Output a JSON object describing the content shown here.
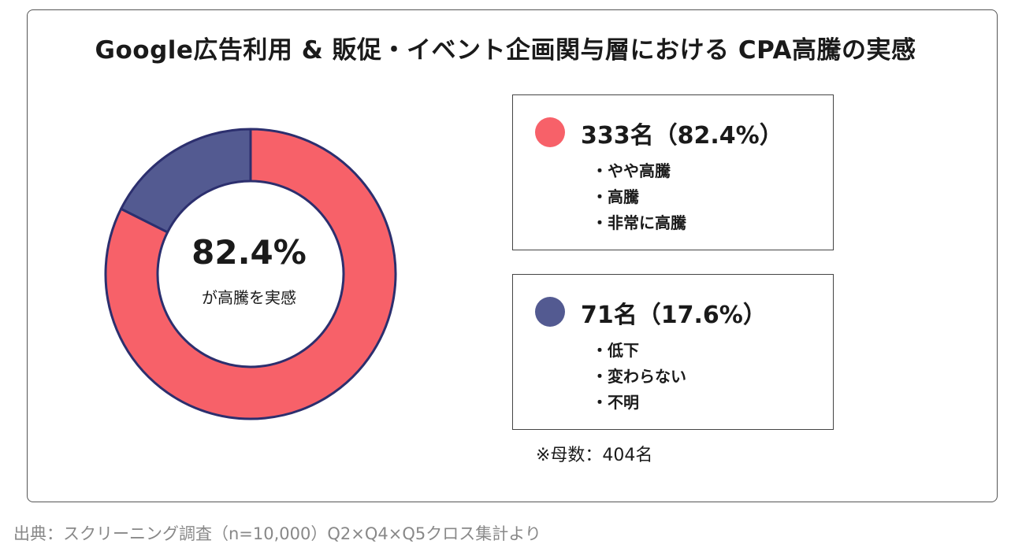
{
  "title": "Google広告利用 & 販促・イベント企画関与層における CPA高騰の実感",
  "center": {
    "value": "82.4%",
    "caption": "が高騰を実感"
  },
  "legend": [
    {
      "heading": "333名（82.4%）",
      "color": "#f76169",
      "items": [
        "やや高騰",
        "高騰",
        "非常に高騰"
      ]
    },
    {
      "heading": "71名（17.6%）",
      "color": "#535a91",
      "items": [
        "低下",
        "変わらない",
        "不明"
      ]
    }
  ],
  "footnote": "※母数：404名",
  "source": "出典：スクリーニング調査（n=10,000）Q2×Q4×Q5クロス集計より",
  "chart_data": {
    "type": "pie",
    "donut": true,
    "categories": [
      "高騰（やや高騰・高騰・非常に高騰）",
      "低下・変わらない・不明"
    ],
    "values": [
      333,
      71
    ],
    "percentages": [
      82.4,
      17.6
    ],
    "colors": [
      "#f76169",
      "#535a91"
    ],
    "outline_color": "#2c2f6e",
    "total": 404
  }
}
